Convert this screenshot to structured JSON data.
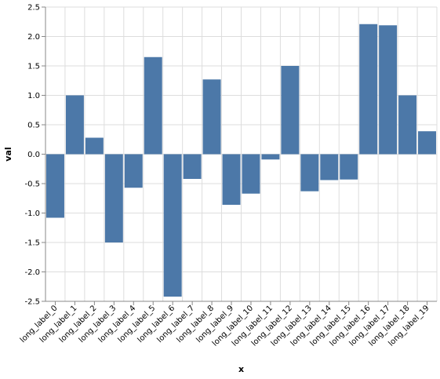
{
  "chart_data": {
    "type": "bar",
    "xlabel": "x",
    "ylabel": "val",
    "categories": [
      "long_label_0",
      "long_label_1",
      "long_label_2",
      "long_label_3",
      "long_label_4",
      "long_label_5",
      "long_label_6",
      "long_label_7",
      "long_label_8",
      "long_label_9",
      "long_label_10",
      "long_label_11",
      "long_label_12",
      "long_label_13",
      "long_label_14",
      "long_label_15",
      "long_label_16",
      "long_label_17",
      "long_label_18",
      "long_label_19"
    ],
    "values": [
      -1.08,
      1.0,
      0.28,
      -1.5,
      -0.57,
      1.65,
      -2.42,
      -0.42,
      1.27,
      -0.86,
      -0.67,
      -0.09,
      1.5,
      -0.63,
      -0.44,
      -0.43,
      2.21,
      2.19,
      1.0,
      0.39
    ],
    "ylim": [
      -2.5,
      2.5
    ],
    "yticks": [
      "2.5",
      "2.0",
      "1.5",
      "1.0",
      "0.5",
      "0.0",
      "-0.5",
      "-1.0",
      "-1.5",
      "-2.0",
      "-2.5"
    ],
    "grid": true,
    "bar_color": "#4c78a8",
    "grid_color": "#dddddd",
    "axis_color": "#888888"
  }
}
